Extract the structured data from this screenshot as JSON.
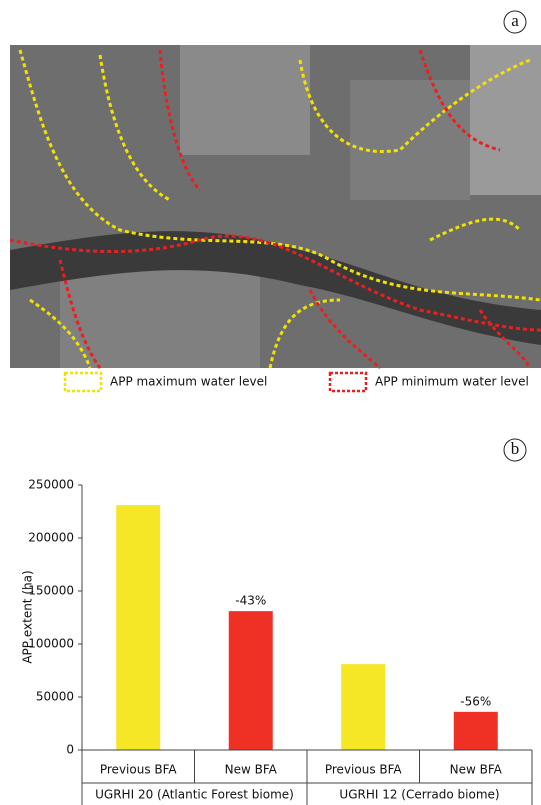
{
  "panel_labels": {
    "a": "a",
    "b": "b"
  },
  "image_legend": [
    {
      "label": "APP maximum water level",
      "color": "#f2e200"
    },
    {
      "label": "APP minimum water level",
      "color": "#e82020"
    }
  ],
  "chart_data": {
    "type": "bar",
    "y_label": "APP extent (ha)",
    "categories": [
      "Previous BFA",
      "New BFA",
      "Previous BFA",
      "New BFA"
    ],
    "groups": [
      "UGRHI 20 (Atlantic Forest biome)",
      "UGRHI 12 (Cerrado biome)"
    ],
    "values": [
      231000,
      131000,
      81000,
      36000
    ],
    "annotations": [
      null,
      "-43%",
      null,
      "-56%"
    ],
    "colors": [
      "#f5e626",
      "#ee3124",
      "#f5e626",
      "#ee3124"
    ],
    "ylim": [
      0,
      250000
    ],
    "yticks": [
      0,
      50000,
      100000,
      150000,
      200000,
      250000
    ],
    "grid": false
  }
}
